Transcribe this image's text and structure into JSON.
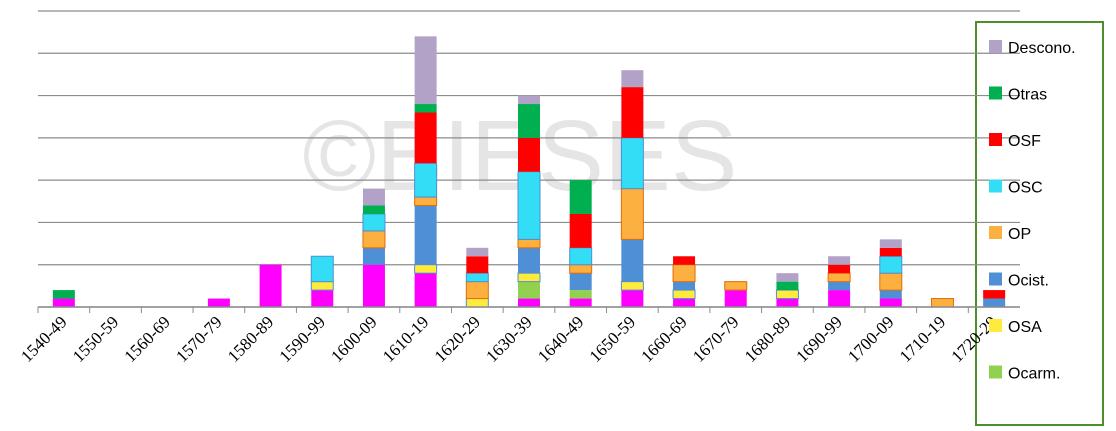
{
  "chart_data": {
    "type": "bar",
    "stacked": true,
    "watermark": "©BIESES",
    "categories": [
      "1540-49",
      "1550-59",
      "1560-69",
      "1570-79",
      "1580-89",
      "1590-99",
      "1600-09",
      "1610-19",
      "1620-29",
      "1630-39",
      "1640-49",
      "1650-59",
      "1660-69",
      "1670-79",
      "1680-89",
      "1690-99",
      "1700-09",
      "1710-19",
      "1720-29"
    ],
    "series": [
      {
        "color": "#ff00ff",
        "values": [
          1,
          0,
          0,
          1,
          5,
          2,
          5,
          4,
          0,
          1,
          1,
          2,
          1,
          2,
          1,
          2,
          1,
          0,
          0
        ]
      },
      {
        "name": "Ocarm.",
        "color": "#92d050",
        "values": [
          0,
          0,
          0,
          0,
          0,
          0,
          0,
          0,
          0,
          2,
          1,
          0,
          0,
          0,
          0,
          0,
          0,
          0,
          0
        ]
      },
      {
        "name": "OSA",
        "color": "#ffeb3b",
        "values": [
          0,
          0,
          0,
          0,
          0,
          1,
          0,
          1,
          1,
          1,
          0,
          1,
          1,
          0,
          1,
          0,
          0,
          0,
          0
        ]
      },
      {
        "name": "Ocist.",
        "color": "#4f8fd6",
        "values": [
          0,
          0,
          0,
          0,
          0,
          0,
          2,
          7,
          0,
          3,
          2,
          5,
          1,
          0,
          0,
          1,
          1,
          0,
          1
        ]
      },
      {
        "name": "OP",
        "color": "#fbb040",
        "values": [
          0,
          0,
          0,
          0,
          0,
          0,
          2,
          1,
          2,
          1,
          1,
          6,
          2,
          1,
          0,
          1,
          2,
          1,
          0
        ]
      },
      {
        "name": "OSC",
        "color": "#33ddf5",
        "values": [
          0,
          0,
          0,
          0,
          0,
          3,
          2,
          4,
          1,
          8,
          2,
          6,
          0,
          0,
          0,
          0,
          2,
          0,
          0
        ]
      },
      {
        "name": "OSF",
        "color": "#ff0000",
        "values": [
          0,
          0,
          0,
          0,
          0,
          0,
          0,
          6,
          2,
          4,
          4,
          6,
          1,
          0,
          0,
          1,
          1,
          0,
          1
        ]
      },
      {
        "name": "Otras",
        "color": "#00b050",
        "values": [
          1,
          0,
          0,
          0,
          0,
          0,
          1,
          1,
          0,
          4,
          4,
          0,
          0,
          0,
          1,
          0,
          0,
          0,
          0
        ]
      },
      {
        "name": "Descono.",
        "color": "#b3a2c7",
        "values": [
          0,
          0,
          0,
          0,
          0,
          0,
          2,
          8,
          1,
          1,
          0,
          2,
          0,
          0,
          1,
          1,
          1,
          0,
          0
        ]
      }
    ],
    "ylim": [
      0,
      35
    ],
    "yticks": [
      0,
      5,
      10,
      15,
      20,
      25,
      30,
      35
    ],
    "grid": true
  }
}
